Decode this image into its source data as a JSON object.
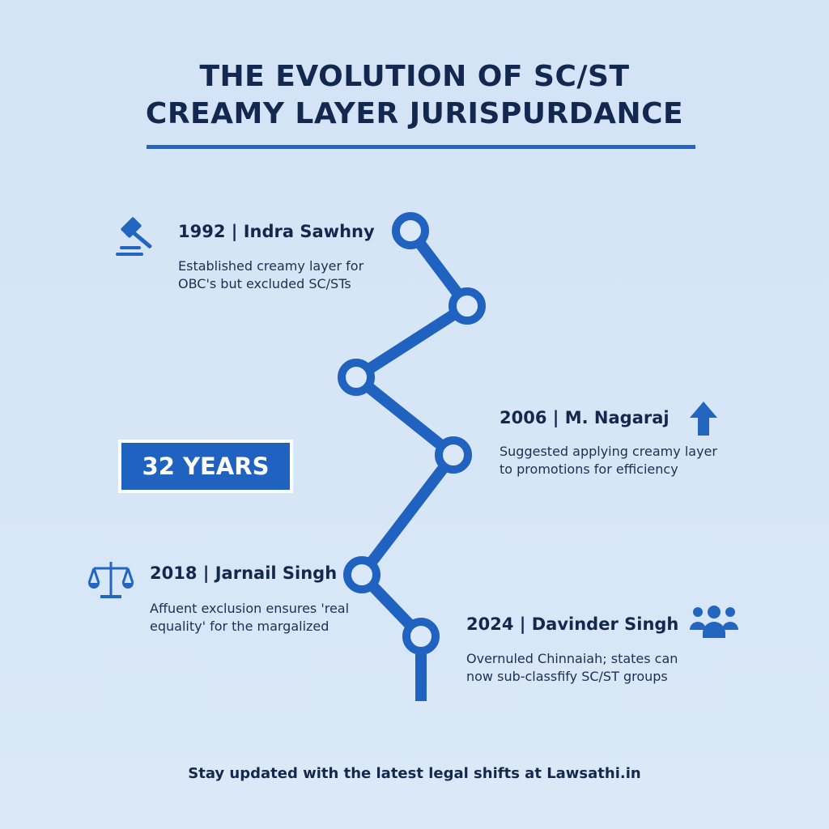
{
  "title_line1": "THE EVOLUTION OF SC/ST",
  "title_line2": "CREAMY LAYER JURISPURDANCE",
  "badge": "32 YEARS",
  "events": [
    {
      "heading": "1992 | Indra Sawhny",
      "line1": "Established creamy layer for",
      "line2": "OBC's but excluded SC/STs",
      "icon": "gavel-icon"
    },
    {
      "heading": "2006 | M. Nagaraj",
      "line1": "Suggested applying creamy layer",
      "line2": "to promotions for efficiency",
      "icon": "arrow-up-icon"
    },
    {
      "heading": "2018 | Jarnail Singh",
      "line1": "Affuent exclusion ensures 'real",
      "line2": " equality' for the margalized",
      "icon": "scales-icon"
    },
    {
      "heading": "2024 | Davinder Singh",
      "line1": "Overnuled Chinnaiah; states can",
      "line2": "now sub-classfify SC/ST groups",
      "icon": "people-icon"
    }
  ],
  "footer": "Stay updated with the latest legal shifts at Lawsathi.in",
  "colors": {
    "accent": "#1f62bf",
    "text": "#13284f",
    "background": "#d6e6f7"
  }
}
